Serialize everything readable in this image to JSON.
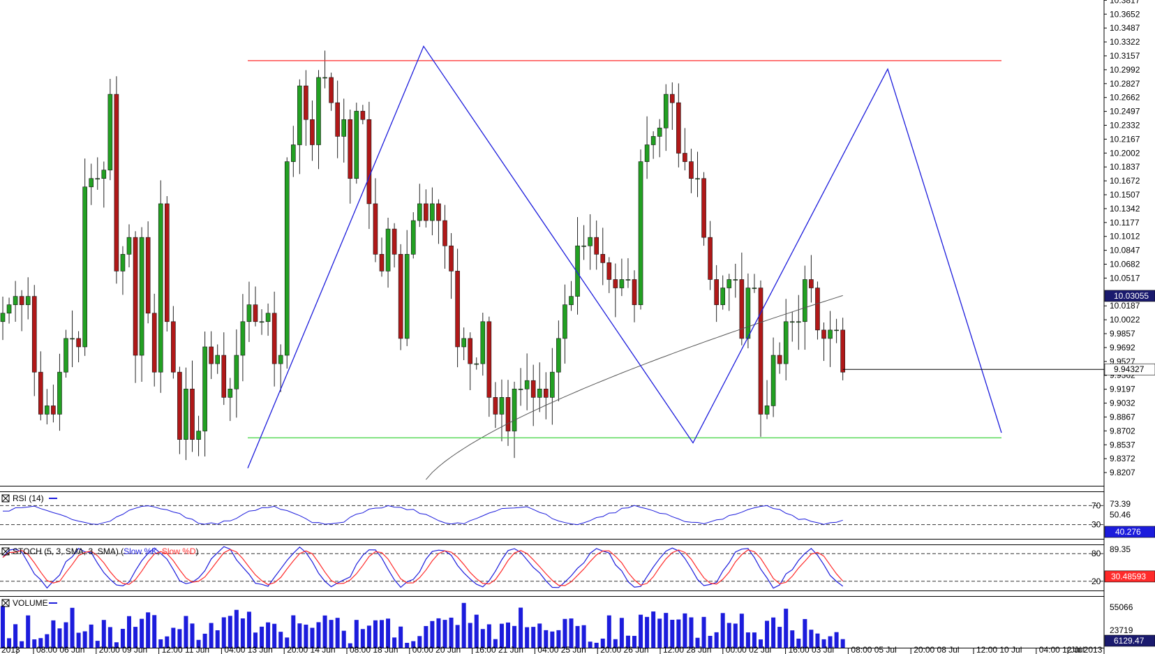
{
  "colors": {
    "up": "#22a022",
    "down": "#b01818",
    "line": "#1c1cdc",
    "red": "#ff2a2a",
    "green": "#3cd23c",
    "ma": "#555555",
    "frame": "#000000",
    "tag": "#1a1a6e"
  },
  "chart_data": [
    {
      "type": "candlestick",
      "panel": "main",
      "price_axis_ticks": [
        "10.3817",
        "10.3652",
        "10.3487",
        "10.3322",
        "10.3157",
        "10.2992",
        "10.2827",
        "10.2662",
        "10.2497",
        "10.2332",
        "10.2167",
        "10.2002",
        "10.1837",
        "10.1672",
        "10.1507",
        "10.1342",
        "10.1177",
        "10.1012",
        "10.0847",
        "10.0682",
        "10.0517",
        "10.0187",
        "10.0022",
        "9.9857",
        "9.9692",
        "9.9527",
        "9.9362",
        "9.9197",
        "9.9032",
        "9.8867",
        "9.8702",
        "9.8537",
        "9.8372",
        "9.8207"
      ],
      "price_range": [
        9.805,
        10.382
      ],
      "current_price_tag": "9.94327",
      "ma_value_tag": "10.03055",
      "time_labels": [
        "2013",
        "08:00 06 Jun",
        "20:00 09 Jun",
        "12:00 11 Jun",
        "04:00 13 Jun",
        "20:00 14 Jun",
        "08:00 18 Jun",
        "00:00 20 Jun",
        "16:00 21 Jun",
        "04:00 25 Jun",
        "20:00 26 Jun",
        "12:00 28 Jun",
        "00:00 02 Jul",
        "16:00 03 Jul",
        "08:00 05 Jul",
        "20:00 08 Jul",
        "12:00 10 Jul",
        "04:00 12 Jul",
        "Jul 2013"
      ],
      "close": [
        10.01,
        10.02,
        10.03,
        10.02,
        10.03,
        9.94,
        9.89,
        9.9,
        9.89,
        9.94,
        9.98,
        9.98,
        9.97,
        10.16,
        10.17,
        10.17,
        10.18,
        10.27,
        10.06,
        10.08,
        10.1,
        9.96,
        10.1,
        10.01,
        9.94,
        10.14,
        10.0,
        9.94,
        9.86,
        9.92,
        9.86,
        9.87,
        9.97,
        9.95,
        9.96,
        9.91,
        9.92,
        9.96,
        10.0,
        10.02,
        10.0,
        10.0,
        10.01,
        9.95,
        9.96,
        10.19,
        10.21,
        10.28,
        10.24,
        10.21,
        10.29,
        10.29,
        10.26,
        10.22,
        10.24,
        10.17,
        10.25,
        10.24,
        10.14,
        10.08,
        10.06,
        10.11,
        10.08,
        9.98,
        10.08,
        10.12,
        10.14,
        10.12,
        10.14,
        10.12,
        10.09,
        10.06,
        9.97,
        9.98,
        9.95,
        9.95,
        10.0,
        9.91,
        9.89,
        9.91,
        9.87,
        9.92,
        9.92,
        9.93,
        9.91,
        9.92,
        9.91,
        9.94,
        9.98,
        10.02,
        10.03,
        10.09,
        10.09,
        10.1,
        10.08,
        10.07,
        10.05,
        10.04,
        10.05,
        10.05,
        10.02,
        10.19,
        10.21,
        10.22,
        10.23,
        10.27,
        10.26,
        10.2,
        10.19,
        10.17,
        10.17,
        10.1,
        10.05,
        10.02,
        10.04,
        10.05,
        10.05,
        9.98,
        10.04,
        10.04,
        9.89,
        9.9,
        9.96,
        9.95,
        10.0,
        10.0,
        10.0,
        10.05,
        10.04,
        9.99,
        9.98,
        9.99,
        9.99,
        9.94
      ],
      "rsi": {
        "label": "RSI (14)",
        "levels": [
          70,
          30
        ],
        "axis_ticks": [
          "73.39",
          "50.46"
        ],
        "current": "40.276",
        "level_labels": [
          "70",
          "30"
        ]
      },
      "stochastic": {
        "label_prefix": "STOCH (5, 3, SMA, 3, SMA) (",
        "label_k": "Slow %K",
        "label_sep": ", ",
        "label_d": "Slow %D",
        "label_suffix": ")",
        "levels": [
          80,
          20
        ],
        "axis_ticks": [
          "89.35"
        ],
        "current": "30.48593",
        "level_labels": [
          "80",
          "20"
        ]
      },
      "volume": {
        "label": "VOLUME",
        "axis_ticks": [
          "55066",
          "23719"
        ],
        "current": "6129.47"
      }
    }
  ]
}
